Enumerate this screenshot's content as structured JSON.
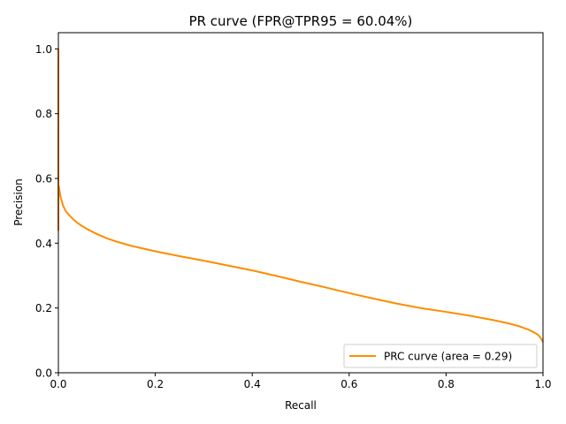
{
  "chart_data": {
    "type": "line",
    "title": "PR curve (FPR@TPR95 = 60.04%)",
    "xlabel": "Recall",
    "ylabel": "Precision",
    "xlim": [
      0.0,
      1.0
    ],
    "ylim": [
      0.0,
      1.05
    ],
    "xticks": [
      "0.0",
      "0.2",
      "0.4",
      "0.6",
      "0.8",
      "1.0"
    ],
    "yticks": [
      "0.0",
      "0.2",
      "0.4",
      "0.6",
      "0.8",
      "1.0"
    ],
    "xtick_values": [
      0.0,
      0.2,
      0.4,
      0.6,
      0.8,
      1.0
    ],
    "ytick_values": [
      0.0,
      0.2,
      0.4,
      0.6,
      0.8,
      1.0
    ],
    "grid": false,
    "legend_position": "lower-right",
    "series": [
      {
        "name": "PRC curve (area = 0.29)",
        "color": "#ff8c00",
        "x": [
          0.0,
          0.0,
          0.0,
          0.0,
          0.0,
          0.001,
          0.002,
          0.003,
          0.005,
          0.007,
          0.01,
          0.015,
          0.02,
          0.03,
          0.04,
          0.05,
          0.06,
          0.08,
          0.1,
          0.12,
          0.15,
          0.2,
          0.25,
          0.3,
          0.35,
          0.4,
          0.45,
          0.5,
          0.55,
          0.6,
          0.65,
          0.7,
          0.75,
          0.8,
          0.85,
          0.9,
          0.93,
          0.95,
          0.97,
          0.98,
          0.99,
          0.995,
          1.0
        ],
        "y": [
          1.0,
          0.85,
          0.65,
          0.44,
          0.58,
          0.575,
          0.565,
          0.555,
          0.54,
          0.53,
          0.515,
          0.5,
          0.49,
          0.475,
          0.462,
          0.452,
          0.443,
          0.428,
          0.415,
          0.405,
          0.392,
          0.375,
          0.36,
          0.346,
          0.331,
          0.316,
          0.299,
          0.281,
          0.264,
          0.246,
          0.229,
          0.213,
          0.199,
          0.188,
          0.176,
          0.162,
          0.152,
          0.144,
          0.133,
          0.126,
          0.117,
          0.108,
          0.095
        ]
      }
    ]
  }
}
